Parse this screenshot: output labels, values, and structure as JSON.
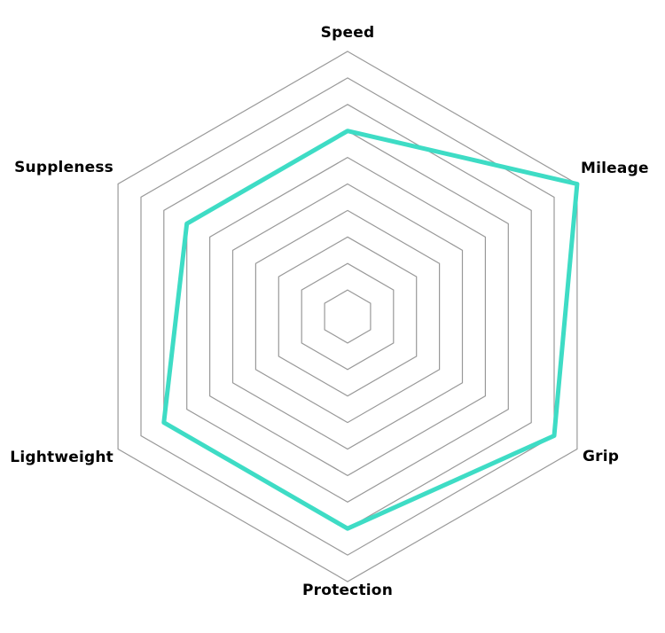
{
  "chart_data": {
    "type": "radar",
    "title": "",
    "categories": [
      "Speed",
      "Mileage",
      "Grip",
      "Protection",
      "Lightweight",
      "Suppleness"
    ],
    "series": [
      {
        "name": "tire-rating",
        "values": [
          7,
          10,
          9,
          8,
          8,
          7
        ],
        "color": "#3EDCC5"
      }
    ],
    "scale": {
      "min": 0,
      "max": 10,
      "rings": 10
    },
    "grid": {
      "shape": "hexagon",
      "color": "#999999",
      "fill": "none"
    },
    "legend_position": "none",
    "background": "#ffffff"
  }
}
